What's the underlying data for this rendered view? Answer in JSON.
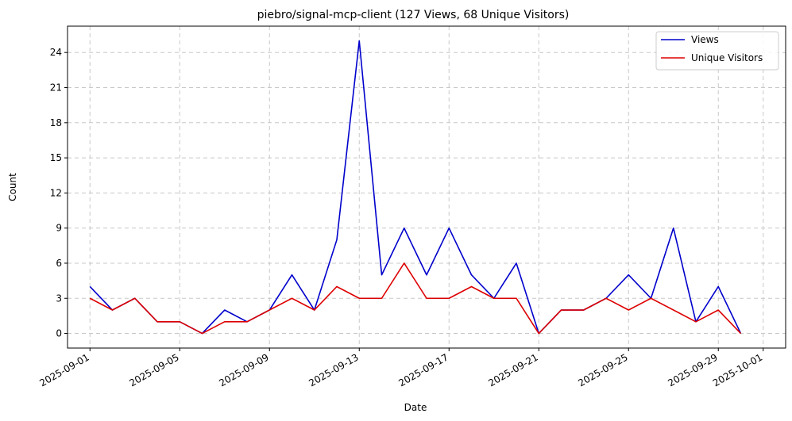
{
  "chart_data": {
    "type": "line",
    "title": "piebro/signal-mcp-client (127 Views, 68 Unique Visitors)",
    "xlabel": "Date",
    "ylabel": "Count",
    "x": [
      "2025-09-01",
      "2025-09-02",
      "2025-09-03",
      "2025-09-04",
      "2025-09-05",
      "2025-09-06",
      "2025-09-07",
      "2025-09-08",
      "2025-09-09",
      "2025-09-10",
      "2025-09-11",
      "2025-09-12",
      "2025-09-13",
      "2025-09-14",
      "2025-09-15",
      "2025-09-16",
      "2025-09-17",
      "2025-09-18",
      "2025-09-19",
      "2025-09-20",
      "2025-09-21",
      "2025-09-22",
      "2025-09-23",
      "2025-09-24",
      "2025-09-25",
      "2025-09-26",
      "2025-09-27",
      "2025-09-28",
      "2025-09-29",
      "2025-09-30"
    ],
    "series": [
      {
        "name": "Views",
        "color": "#0000cc",
        "values": [
          4,
          2,
          3,
          1,
          1,
          0,
          2,
          1,
          2,
          5,
          2,
          8,
          25,
          5,
          9,
          5,
          9,
          5,
          3,
          6,
          0,
          2,
          2,
          3,
          5,
          3,
          9,
          1,
          4,
          0
        ]
      },
      {
        "name": "Unique Visitors",
        "color": "#dd0000",
        "values": [
          3,
          2,
          3,
          1,
          1,
          0,
          1,
          1,
          2,
          3,
          2,
          4,
          3,
          3,
          6,
          3,
          3,
          4,
          3,
          3,
          0,
          2,
          2,
          3,
          2,
          3,
          2,
          1,
          2,
          0
        ]
      }
    ],
    "xticks": [
      "2025-09-01",
      "2025-09-05",
      "2025-09-09",
      "2025-09-13",
      "2025-09-17",
      "2025-09-21",
      "2025-09-25",
      "2025-09-29",
      "2025-10-01"
    ],
    "yticks": [
      "0",
      "3",
      "6",
      "9",
      "12",
      "15",
      "18",
      "21",
      "24"
    ],
    "xlim": [
      "2025-08-31",
      "2025-10-02"
    ],
    "ylim": [
      -1.25,
      26.25
    ],
    "grid": true,
    "legend": "top-right"
  }
}
